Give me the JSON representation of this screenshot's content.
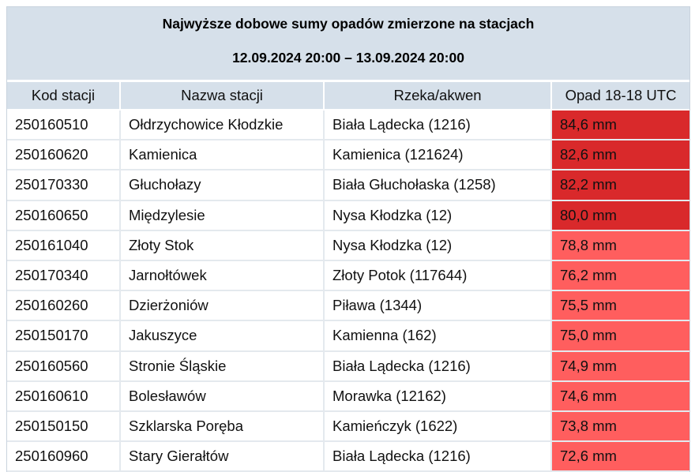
{
  "title": "Najwyższe dobowe sumy opadów zmierzone na stacjach",
  "date_range": "12.09.2024 20:00 – 13.09.2024 20:00",
  "columns": [
    "Kod stacji",
    "Nazwa stacji",
    "Rzeka/akwen",
    "Opad 18-18 UTC"
  ],
  "colors": {
    "header_bg": "#d6e0ea",
    "high_precip": "#d9292b",
    "medium_precip": "#ff5e5e"
  },
  "rows": [
    {
      "code": "250160510",
      "name": "Ołdrzychowice Kłodzkie",
      "river": "Biała Lądecka (1216)",
      "precip": "84,6 mm",
      "level": "dark"
    },
    {
      "code": "250160620",
      "name": "Kamienica",
      "river": "Kamienica (121624)",
      "precip": "82,6 mm",
      "level": "dark"
    },
    {
      "code": "250170330",
      "name": "Głuchołazy",
      "river": "Biała Głuchołaska (1258)",
      "precip": "82,2 mm",
      "level": "dark"
    },
    {
      "code": "250160650",
      "name": "Międzylesie",
      "river": "Nysa Kłodzka (12)",
      "precip": "80,0 mm",
      "level": "dark"
    },
    {
      "code": "250161040",
      "name": "Złoty Stok",
      "river": "Nysa Kłodzka (12)",
      "precip": "78,8 mm",
      "level": "light"
    },
    {
      "code": "250170340",
      "name": "Jarnołtówek",
      "river": "Złoty Potok (117644)",
      "precip": "76,2 mm",
      "level": "light"
    },
    {
      "code": "250160260",
      "name": "Dzierżoniów",
      "river": "Piława (1344)",
      "precip": "75,5 mm",
      "level": "light"
    },
    {
      "code": "250150170",
      "name": "Jakuszyce",
      "river": "Kamienna (162)",
      "precip": "75,0 mm",
      "level": "light"
    },
    {
      "code": "250160560",
      "name": "Stronie Śląskie",
      "river": "Biała Lądecka (1216)",
      "precip": "74,9 mm",
      "level": "light"
    },
    {
      "code": "250160610",
      "name": "Bolesławów",
      "river": "Morawka (12162)",
      "precip": "74,6 mm",
      "level": "light"
    },
    {
      "code": "250150150",
      "name": "Szklarska Poręba",
      "river": "Kamieńczyk (1622)",
      "precip": "73,8 mm",
      "level": "light"
    },
    {
      "code": "250160960",
      "name": "Stary Gierałtów",
      "river": "Biała Lądecka (1216)",
      "precip": "72,6 mm",
      "level": "light"
    }
  ]
}
